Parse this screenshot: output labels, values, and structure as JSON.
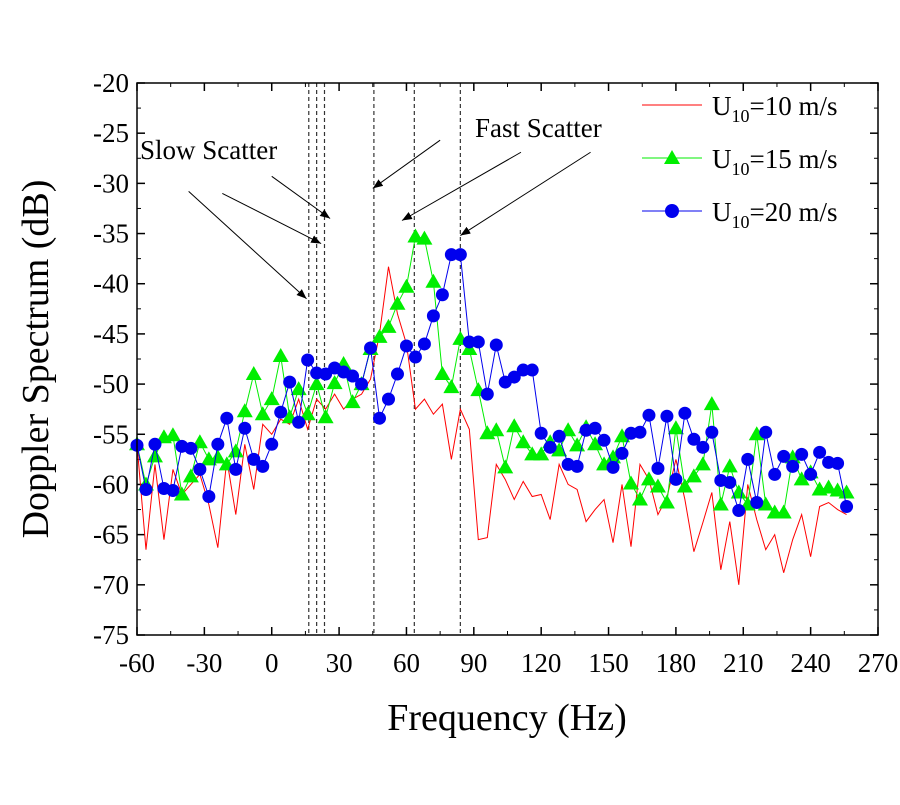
{
  "chart_data": {
    "type": "line",
    "xlabel": "Frequency (Hz)",
    "ylabel": "Doppler Spectrum (dB)",
    "xlim": [
      -60,
      270
    ],
    "ylim": [
      -75,
      -20
    ],
    "xticks": [
      -60,
      -30,
      0,
      30,
      60,
      90,
      120,
      150,
      180,
      210,
      240,
      270
    ],
    "yticks": [
      -20,
      -25,
      -30,
      -35,
      -40,
      -45,
      -50,
      -55,
      -60,
      -65,
      -70,
      -75
    ],
    "x_start": -60,
    "x_step": 4,
    "series": [
      {
        "name": "U10=10 m/s",
        "label_main": "U",
        "label_sub": "10",
        "label_rest": "=10 m/s",
        "color": "#ff0000",
        "marker": "none",
        "values": [
          -56,
          -66.5,
          -58,
          -65.5,
          -58.5,
          -61,
          -60,
          -59,
          -62,
          -66.3,
          -57.5,
          -63,
          -56,
          -60.5,
          -54,
          -55,
          -53.5,
          -54,
          -51.5,
          -54.5,
          -51.5,
          -52.5,
          -51,
          -52.5,
          -51.5,
          -51,
          -49.5,
          -45,
          -38.3,
          -43,
          -46,
          -52.5,
          -51.5,
          -53,
          -52,
          -57.5,
          -52.5,
          -54.5,
          -65.5,
          -65.3,
          -58,
          -59.5,
          -61.5,
          -59.7,
          -61.2,
          -61,
          -63.5,
          -58,
          -60,
          -60.5,
          -63.7,
          -62.5,
          -61.5,
          -65.8,
          -60,
          -66.2,
          -58,
          -59.5,
          -63,
          -61.3,
          -57.5,
          -61.5,
          -66.7,
          -63.8,
          -60.8,
          -68.5,
          -63.7,
          -70,
          -60,
          -63.5,
          -66.5,
          -65,
          -68.8,
          -65.5,
          -63,
          -67.2,
          -62.2,
          -61.8,
          -62.5,
          -63
        ]
      },
      {
        "name": "U10=15 m/s",
        "label_main": "U",
        "label_sub": "10",
        "label_rest": "=15 m/s",
        "color": "#00ee00",
        "marker": "triangle",
        "values": [
          -56,
          -60,
          -57.2,
          -55.3,
          -55.1,
          -61,
          -59.2,
          -55.8,
          -57.5,
          -57.3,
          -58,
          -56.7,
          -52.7,
          -49,
          -53,
          -51.5,
          -47.2,
          -53.3,
          -50.5,
          -53,
          -50,
          -53.3,
          -49.9,
          -48,
          -51.8,
          -50,
          -46.5,
          -45.3,
          -44.3,
          -42,
          -40.3,
          -35.3,
          -35.5,
          -39.8,
          -49,
          -50.3,
          -45.5,
          -46.5,
          -50.6,
          -54.9,
          -54.6,
          -58.3,
          -54.2,
          -55.8,
          -57,
          -57,
          -55.8,
          -56.6,
          -54.6,
          -56.1,
          -54.3,
          -56,
          -58,
          -57.3,
          -55.2,
          -59.9,
          -61.5,
          -59.5,
          -60.2,
          -61.8,
          -54.4,
          -60.2,
          -59.2,
          -58,
          -52,
          -62,
          -58.2,
          -60.8,
          -62,
          -55,
          -62,
          -62.8,
          -62.8,
          -57.3,
          -59.5,
          -58.8,
          -60.5,
          -60.3,
          -60.6,
          -60.8
        ]
      },
      {
        "name": "U10=20 m/s",
        "label_main": "U",
        "label_sub": "10",
        "label_rest": "=20 m/s",
        "color": "#0000ee",
        "marker": "circle",
        "values": [
          -56.1,
          -60.5,
          -56,
          -60.4,
          -60.6,
          -56.2,
          -56.4,
          -58.5,
          -61.2,
          -56,
          -53.4,
          -58.5,
          -54.4,
          -57.5,
          -58.2,
          -56,
          -52.8,
          -49.8,
          -53.8,
          -47.6,
          -48.9,
          -49,
          -48.4,
          -48.8,
          -49.2,
          -50,
          -46.4,
          -53.4,
          -51.5,
          -49,
          -46.2,
          -47.3,
          -46,
          -43.2,
          -41.1,
          -37.1,
          -37.1,
          -45.8,
          -45.8,
          -51,
          -46.1,
          -49.8,
          -49.3,
          -48.6,
          -48.6,
          -54.9,
          -56.3,
          -55.2,
          -58,
          -58.2,
          -54.6,
          -54.4,
          -55.6,
          -58.3,
          -56.9,
          -54.9,
          -54.8,
          -53.1,
          -58.4,
          -53.2,
          -59.5,
          -52.9,
          -55.5,
          -56.3,
          -54.8,
          -59.6,
          -59.8,
          -62.6,
          -57.5,
          -61.8,
          -54.8,
          -59,
          -57.2,
          -58.2,
          -57,
          -59,
          -56.8,
          -57.8,
          -57.9,
          -62.2
        ]
      }
    ],
    "vlines": [
      16.5,
      20,
      23.5,
      45.5,
      63.5,
      84
    ],
    "annotations": [
      {
        "text": "Slow Scatter",
        "arrows": [
          {
            "from": [
              -37,
              -30.8
            ],
            "to": [
              15.5,
              -41.5
            ]
          },
          {
            "from": [
              -22,
              -31
            ],
            "to": [
              22,
              -36
            ]
          },
          {
            "from": [
              0,
              -29.3
            ],
            "to": [
              26,
              -33.5
            ]
          }
        ]
      },
      {
        "text": "Fast Scatter",
        "arrows": [
          {
            "from": [
              75,
              -25.7
            ],
            "to": [
              45,
              -30.5
            ]
          },
          {
            "from": [
              111,
              -26.9
            ],
            "to": [
              58,
              -33.7
            ]
          },
          {
            "from": [
              142,
              -26.9
            ],
            "to": [
              84,
              -35.2
            ]
          }
        ]
      }
    ],
    "legend_position": "top-right"
  }
}
